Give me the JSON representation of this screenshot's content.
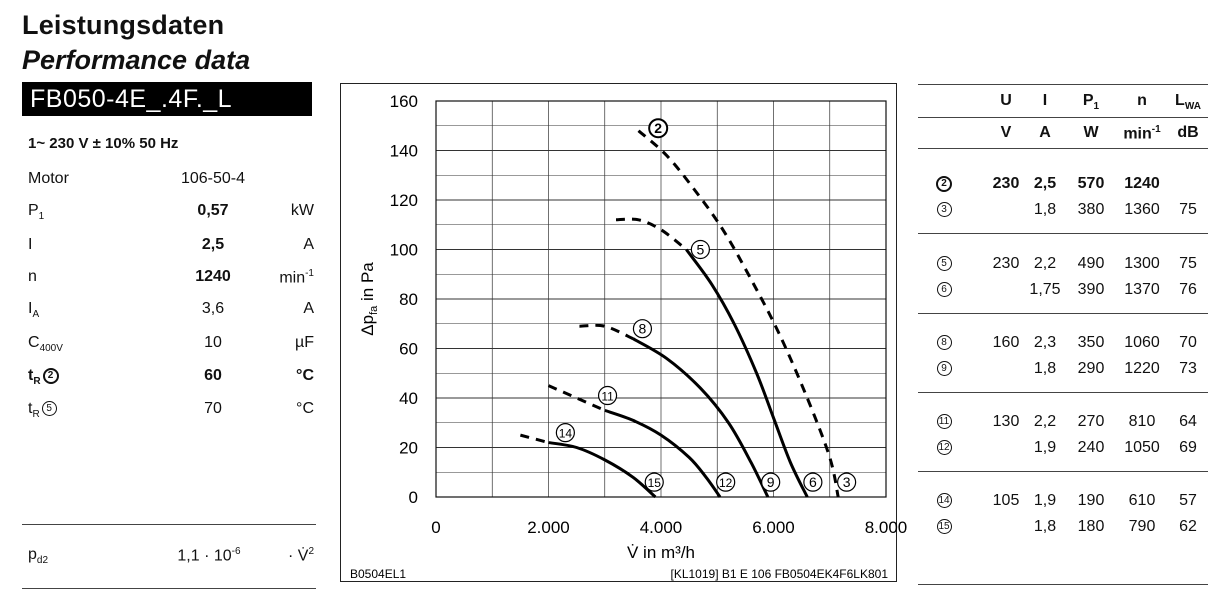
{
  "header": {
    "title_de": "Leistungsdaten",
    "title_en": "Performance data",
    "model": "FB050-4E_.4F._L"
  },
  "specs": {
    "supply": "1~ 230 V ± 10% 50 Hz",
    "rows": [
      {
        "label": "Motor",
        "value": "106-50-4",
        "unit": ""
      },
      {
        "label": "P",
        "sub": "1",
        "value": "0,57",
        "unit": "kW",
        "bold": true
      },
      {
        "label": "I",
        "value": "2,5",
        "unit": "A",
        "bold": true
      },
      {
        "label": "n",
        "value": "1240",
        "unit": "min",
        "unit_sup": "-1",
        "bold": true
      },
      {
        "label": "I",
        "sub": "A",
        "value": "3,6",
        "unit": "A"
      },
      {
        "label": "C",
        "sub": "400V",
        "value": "10",
        "unit": "µF"
      },
      {
        "label": "t",
        "sub": "R",
        "circle": "2",
        "value": "60",
        "unit": "°C",
        "bold": true
      },
      {
        "label": "t",
        "sub": "R",
        "circle": "5",
        "value": "70",
        "unit": "°C"
      }
    ],
    "pd2": {
      "label": "p",
      "sub": "d2",
      "value": "1,1 · 10",
      "value_sup": "-6",
      "unit": "· V̇",
      "unit_sup": "2"
    }
  },
  "chart_data": {
    "type": "line",
    "title": "",
    "xlabel": "V̇ in m³/h",
    "ylabel": "Δp",
    "ylabel_sub": "fa",
    "ylabel_suffix": " in Pa",
    "xlim": [
      0,
      8000
    ],
    "ylim": [
      0,
      160
    ],
    "xticks": [
      0,
      2000,
      4000,
      6000,
      8000
    ],
    "xtick_labels": [
      "0",
      "2.000",
      "4.000",
      "6.000",
      "8.000"
    ],
    "yticks": [
      0,
      20,
      40,
      60,
      80,
      100,
      120,
      140,
      160
    ],
    "grid": true,
    "series": [
      {
        "name": "2",
        "dash": true,
        "points": [
          [
            3600,
            148
          ],
          [
            4100,
            138
          ],
          [
            4600,
            124
          ],
          [
            5100,
            108
          ],
          [
            5600,
            88
          ],
          [
            6100,
            66
          ],
          [
            6600,
            40
          ],
          [
            7000,
            16
          ],
          [
            7150,
            0
          ]
        ]
      },
      {
        "name": "5",
        "dash": false,
        "points": [
          [
            4450,
            100
          ],
          [
            4900,
            86
          ],
          [
            5300,
            70
          ],
          [
            5700,
            50
          ],
          [
            6000,
            32
          ],
          [
            6300,
            14
          ],
          [
            6600,
            0
          ]
        ]
      },
      {
        "name": "5",
        "dash": true,
        "points": [
          [
            3200,
            112
          ],
          [
            3600,
            112
          ],
          [
            4000,
            108
          ],
          [
            4450,
            100
          ]
        ]
      },
      {
        "name": "8",
        "dash": false,
        "points": [
          [
            3500,
            64
          ],
          [
            4100,
            56
          ],
          [
            4700,
            44
          ],
          [
            5200,
            30
          ],
          [
            5600,
            14
          ],
          [
            5900,
            0
          ]
        ]
      },
      {
        "name": "8",
        "dash": true,
        "points": [
          [
            2550,
            69
          ],
          [
            3000,
            69
          ],
          [
            3500,
            64
          ]
        ]
      },
      {
        "name": "11",
        "dash": false,
        "points": [
          [
            3000,
            35
          ],
          [
            3500,
            31
          ],
          [
            4000,
            25
          ],
          [
            4500,
            16
          ],
          [
            4800,
            8
          ],
          [
            5050,
            0
          ]
        ]
      },
      {
        "name": "11",
        "dash": true,
        "points": [
          [
            2000,
            45
          ],
          [
            2400,
            41
          ],
          [
            3000,
            35
          ]
        ]
      },
      {
        "name": "14",
        "dash": false,
        "points": [
          [
            2000,
            22
          ],
          [
            2500,
            20
          ],
          [
            3000,
            15
          ],
          [
            3500,
            8
          ],
          [
            3900,
            0
          ]
        ]
      },
      {
        "name": "14",
        "dash": true,
        "points": [
          [
            1500,
            25
          ],
          [
            2000,
            22
          ]
        ]
      }
    ],
    "curve_labels": [
      {
        "name": "2",
        "x": 3950,
        "y": 149
      },
      {
        "name": "5",
        "x": 4700,
        "y": 100
      },
      {
        "name": "8",
        "x": 3670,
        "y": 68
      },
      {
        "name": "11",
        "x": 3050,
        "y": 41
      },
      {
        "name": "14",
        "x": 2300,
        "y": 26
      },
      {
        "name": "15",
        "x": 3880,
        "y": 6
      },
      {
        "name": "12",
        "x": 5150,
        "y": 6
      },
      {
        "name": "9",
        "x": 5950,
        "y": 6
      },
      {
        "name": "6",
        "x": 6700,
        "y": 6
      },
      {
        "name": "3",
        "x": 7300,
        "y": 6
      }
    ],
    "footer_left": "B0504EL1",
    "footer_right": "[KL1019] B1 E 106 FB0504EK4F6LK801"
  },
  "table": {
    "headers": [
      "U",
      "I",
      "P",
      "n",
      "L"
    ],
    "header_subs": [
      "",
      "",
      "1",
      "",
      "WA"
    ],
    "units": [
      "V",
      "A",
      "W",
      "min",
      "dB"
    ],
    "unit_sups": [
      "",
      "",
      "",
      "-1",
      ""
    ],
    "groups": [
      {
        "rows": [
          {
            "id": "2",
            "bold": true,
            "U": "230",
            "I": "2,5",
            "P": "570",
            "n": "1240",
            "L": ""
          },
          {
            "id": "3",
            "bold": false,
            "U": "",
            "I": "1,8",
            "P": "380",
            "n": "1360",
            "L": "75"
          }
        ]
      },
      {
        "rows": [
          {
            "id": "5",
            "bold": false,
            "U": "230",
            "I": "2,2",
            "P": "490",
            "n": "1300",
            "L": "75"
          },
          {
            "id": "6",
            "bold": false,
            "U": "",
            "I": "1,75",
            "P": "390",
            "n": "1370",
            "L": "76"
          }
        ]
      },
      {
        "rows": [
          {
            "id": "8",
            "bold": false,
            "U": "160",
            "I": "2,3",
            "P": "350",
            "n": "1060",
            "L": "70"
          },
          {
            "id": "9",
            "bold": false,
            "U": "",
            "I": "1,8",
            "P": "290",
            "n": "1220",
            "L": "73"
          }
        ]
      },
      {
        "rows": [
          {
            "id": "11",
            "bold": false,
            "U": "130",
            "I": "2,2",
            "P": "270",
            "n": "810",
            "L": "64"
          },
          {
            "id": "12",
            "bold": false,
            "U": "",
            "I": "1,9",
            "P": "240",
            "n": "1050",
            "L": "69"
          }
        ]
      },
      {
        "rows": [
          {
            "id": "14",
            "bold": false,
            "U": "105",
            "I": "1,9",
            "P": "190",
            "n": "610",
            "L": "57"
          },
          {
            "id": "15",
            "bold": false,
            "U": "",
            "I": "1,8",
            "P": "180",
            "n": "790",
            "L": "62"
          }
        ]
      }
    ]
  }
}
